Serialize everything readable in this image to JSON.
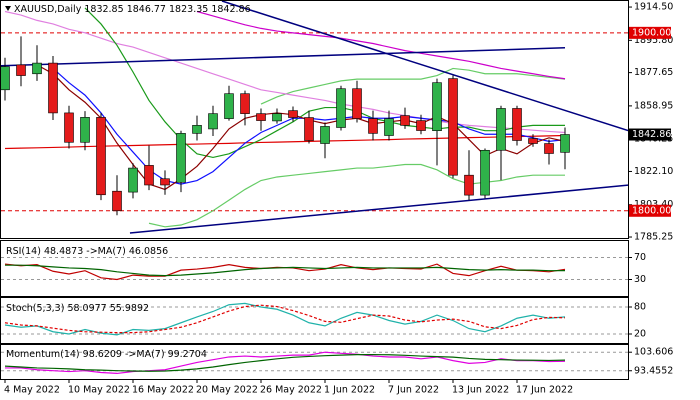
{
  "chart_data": [
    {
      "type": "candlestick",
      "title": "XAUUSD,Daily",
      "categories": [
        "4 May 2022",
        null,
        null,
        null,
        "10 May 2022",
        null,
        null,
        null,
        "16 May 2022",
        null,
        null,
        null,
        "20 May 2022",
        null,
        null,
        null,
        "26 May 2022",
        null,
        null,
        null,
        "1 Jun 2022",
        null,
        null,
        null,
        "7 Jun 2022",
        null,
        null,
        null,
        "13 Jun 2022",
        null,
        null,
        null,
        "17 Jun 2022",
        null,
        null,
        null
      ],
      "open": [
        1868,
        1882,
        1877,
        1883,
        1855,
        1838.5,
        1852.5,
        1811,
        1810.5,
        1825.5,
        1818,
        1816,
        1843.5,
        1846,
        1851.8,
        1865.8,
        1854.6,
        1850.5,
        1856.3,
        1852.4,
        1837.8,
        1846.8,
        1868.6,
        1851.8,
        1842.3,
        1853.5,
        1850.7,
        1845,
        1874.3,
        1820,
        1808.8,
        1834,
        1857.5,
        1840.6,
        1837.8,
        1832.85
      ],
      "high": [
        1886,
        1898,
        1893,
        1887,
        1859,
        1856,
        1855,
        1820,
        1826.7,
        1836.7,
        1822.7,
        1845,
        1853.5,
        1859,
        1870.3,
        1867.5,
        1857.5,
        1857.5,
        1858.6,
        1856.3,
        1849.6,
        1870.3,
        1873.1,
        1856.3,
        1856.3,
        1858,
        1854,
        1874.3,
        1876,
        1834,
        1835,
        1859,
        1859,
        1843,
        1840,
        1846.77
      ],
      "low": [
        1862,
        1870,
        1873,
        1851,
        1835,
        1834,
        1806,
        1797.5,
        1807,
        1811.6,
        1809,
        1810.5,
        1839.5,
        1842,
        1850.7,
        1848,
        1845,
        1849,
        1850.2,
        1837.8,
        1829.5,
        1845.1,
        1849.6,
        1839.5,
        1839.5,
        1846,
        1843,
        1825.5,
        1818.3,
        1806,
        1807,
        1817.2,
        1836.7,
        1836,
        1826,
        1823.35
      ],
      "close": [
        1881,
        1876,
        1883,
        1855,
        1838.5,
        1852.5,
        1809,
        1800,
        1824,
        1814.5,
        1814.5,
        1843.5,
        1848,
        1854.6,
        1865.8,
        1854.6,
        1850.7,
        1854.6,
        1852.4,
        1839.5,
        1847.4,
        1868.6,
        1851.8,
        1843.5,
        1851.8,
        1848,
        1845.1,
        1872,
        1820,
        1808.8,
        1834,
        1857.5,
        1839.5,
        1837.8,
        1832.2,
        1842.86
      ],
      "up_color": "#2fb24a",
      "down_color": "#e41b1b",
      "wick_color": "#000000",
      "ylim": [
        1784.7,
        1917.9
      ],
      "yticks": [
        {
          "value": 1914.5,
          "label": "1914.50"
        },
        {
          "value": 1895.8,
          "label": "1895.80"
        },
        1877.65,
        1858.95,
        1840.25,
        {
          "value": 1822.1,
          "label": "1822.10"
        },
        {
          "value": 1803.4,
          "label": "1803.40"
        },
        1785.25
      ],
      "levels": [
        {
          "value": 1900,
          "label": "1900.00",
          "color": "#e00000"
        },
        {
          "value": 1800,
          "label": "1800.00",
          "color": "#e00000"
        }
      ],
      "last_price_color": "#000000",
      "series": [
        {
          "color": "#66cc66",
          "values": [
            null,
            null,
            null,
            null,
            null,
            null,
            null,
            null,
            null,
            null,
            null,
            null,
            null,
            null,
            null,
            null,
            1860,
            1864,
            1867,
            1869,
            1871,
            1873,
            1874,
            1874,
            1874,
            1874,
            1874,
            1876,
            1880,
            1879,
            1877,
            1877,
            1877,
            1876,
            1875,
            1874
          ]
        },
        {
          "color": "#66cc66",
          "values": [
            null,
            null,
            null,
            null,
            null,
            null,
            null,
            null,
            null,
            1793,
            1791,
            1792,
            1795,
            1800,
            1806,
            1812,
            1817,
            1819,
            1820,
            1821,
            1822,
            1823,
            1824,
            1824,
            1825,
            1826,
            1826,
            1823,
            1818,
            1815,
            1816,
            1817,
            1819,
            1820,
            1820,
            1820
          ]
        },
        {
          "color": "#e080e0",
          "values": [
            1912,
            1910,
            1907,
            1905,
            1902,
            1900,
            1897,
            1894,
            1892,
            1889,
            1886,
            1883,
            1880,
            1877,
            1874,
            1871,
            1868,
            1866.5,
            1865,
            1863.5,
            1862,
            1860,
            1858.5,
            1857,
            1855,
            1853.5,
            1852,
            1850.5,
            1849,
            1848,
            1847.3,
            1846.6,
            1846,
            1845.3,
            1844.6,
            1844
          ]
        },
        {
          "color": "#cc00cc",
          "values": [
            null,
            null,
            null,
            null,
            null,
            null,
            null,
            null,
            null,
            null,
            null,
            null,
            1912,
            1909.5,
            1907,
            1904.5,
            1902.5,
            1901,
            1900,
            1899,
            1898,
            1897,
            1895.5,
            1894,
            1892,
            1890,
            1888.5,
            1887,
            1885.5,
            1884,
            1882,
            1880,
            1878.5,
            1877,
            1875.5,
            1874.2
          ]
        },
        {
          "color": "#e00000",
          "values": [
            1835,
            1835.2,
            1835.4,
            1835.6,
            1835.8,
            1836.1,
            1836.3,
            1836.5,
            1836.7,
            1836.9,
            1837.1,
            1837.3,
            1837.5,
            1837.7,
            1837.9,
            1838.2,
            1838.4,
            1838.6,
            1838.8,
            1839,
            1839.2,
            1839.4,
            1839.6,
            1839.8,
            1840,
            1840.3,
            1840.5,
            1840.7,
            1840.9,
            1841.1,
            1841.3,
            1841.5,
            1841.7,
            1841.9,
            1842.1,
            1842.3
          ]
        },
        {
          "color": "#1a9a1a",
          "values": [
            null,
            null,
            null,
            null,
            null,
            1914,
            1905,
            1893,
            1878,
            1862,
            1850,
            1840,
            1832,
            1830,
            1832,
            1836,
            1840,
            1845,
            1850,
            1856,
            1858,
            1858,
            1856,
            1852,
            1850,
            1848,
            1847,
            1846,
            1847,
            1847,
            1845,
            1845,
            1847,
            1848,
            1848,
            1848
          ]
        },
        {
          "color": "#1010ff",
          "values": [
            null,
            null,
            null,
            1880,
            1872,
            1865,
            1855,
            1843,
            1833,
            1823,
            1817,
            1815,
            1817,
            1822,
            1830,
            1838,
            1844,
            1848,
            1852,
            1852,
            1851,
            1852,
            1853,
            1852,
            1852,
            1853,
            1852,
            1851,
            1850,
            1846,
            1843,
            1843,
            1843,
            1841,
            1839,
            1840
          ]
        },
        {
          "color": "#8b0000",
          "values": [
            null,
            null,
            1882,
            1877,
            1868,
            1861,
            1852,
            1838,
            1826,
            1815,
            1812,
            1818,
            1825,
            1835,
            1846,
            1852,
            1854,
            1855,
            1854,
            1851,
            1849,
            1851,
            1852,
            1849,
            1850,
            1851,
            1849,
            1853,
            1849,
            1840,
            1831,
            1835,
            1832,
            1838,
            1841,
            1839
          ]
        }
      ],
      "trendlines": [
        {
          "color": "#00007f",
          "x": [
            13.56,
            38.94
          ],
          "y": [
            1917.9,
            1845.1
          ]
        },
        {
          "color": "#00007f",
          "x": [
            7.81,
            38.94
          ],
          "y": [
            1787.5,
            1814.4
          ]
        },
        {
          "color": "#00007f",
          "x": [
            -0.31,
            35
          ],
          "y": [
            1881.5,
            1891.6
          ]
        }
      ]
    },
    {
      "type": "line",
      "ylim": [
        0,
        100
      ],
      "yticks": [
        70,
        30
      ],
      "series": [
        {
          "name": "RSI(14)",
          "color": "#c00000",
          "values": [
            58,
            55,
            57,
            45,
            40,
            46,
            33,
            30,
            38,
            36,
            36,
            47,
            49,
            52,
            57,
            52,
            50,
            52,
            51,
            46,
            49,
            57,
            51,
            48,
            51,
            50,
            49,
            58,
            41,
            37,
            46,
            54,
            47,
            46,
            44,
            48.4873
          ]
        },
        {
          "name": "->MA(7)",
          "color": "#006400",
          "values": [
            56,
            56,
            55,
            53,
            51,
            50,
            48,
            44,
            41,
            38,
            37,
            38,
            40,
            42,
            45,
            48,
            50,
            51,
            52,
            51,
            50,
            51,
            52,
            51,
            51,
            51,
            51,
            52,
            50,
            48,
            47,
            48,
            47,
            47,
            46,
            46.0856
          ]
        }
      ]
    },
    {
      "type": "line",
      "ylim": [
        0,
        100
      ],
      "yticks": [
        80,
        20
      ],
      "series": [
        {
          "name": "Stoch(5,3,3)",
          "color": "#20b2aa",
          "values": [
            40,
            35,
            38,
            25,
            20,
            30,
            22,
            18,
            30,
            28,
            32,
            45,
            58,
            70,
            85,
            88,
            80,
            75,
            62,
            45,
            38,
            55,
            68,
            62,
            50,
            42,
            48,
            62,
            50,
            32,
            25,
            38,
            55,
            62,
            55,
            58.0977
          ]
        },
        {
          "color": "#e00000",
          "dashed": true,
          "values": [
            45,
            40,
            38,
            33,
            28,
            25,
            24,
            23,
            23,
            25,
            30,
            35,
            45,
            58,
            71,
            81,
            84,
            81,
            72,
            61,
            48,
            46,
            54,
            62,
            60,
            51,
            47,
            51,
            53,
            48,
            36,
            32,
            39,
            52,
            57,
            55.9892
          ]
        }
      ]
    },
    {
      "type": "line",
      "ylim": [
        88.94,
        107.55
      ],
      "yticks": [
        103.606,
        93.4552
      ],
      "series": [
        {
          "name": "Momentum(14)",
          "color": "#e000e0",
          "values": [
            95,
            95,
            94,
            93.5,
            93,
            93.5,
            92.5,
            92,
            93,
            93.5,
            94,
            96,
            98,
            99.5,
            101,
            101.5,
            101,
            101.5,
            102,
            102,
            103.6,
            103,
            102.5,
            101.5,
            101,
            101,
            100,
            101,
            99,
            97.5,
            98,
            100,
            99,
            99,
            98.5,
            98.6209
          ]
        },
        {
          "name": "->MA(7)",
          "color": "#006400",
          "values": [
            96,
            95.5,
            95,
            94.8,
            94.5,
            94,
            93.8,
            93.5,
            93.3,
            93.2,
            93.3,
            93.8,
            94.5,
            95.5,
            96.8,
            98,
            99,
            100,
            100.8,
            101.3,
            101.7,
            102,
            102.3,
            102.3,
            102.2,
            101.9,
            101.5,
            101.2,
            100.9,
            100.2,
            99.7,
            99.5,
            99.3,
            99.2,
            99.1,
            99.2704
          ]
        }
      ]
    }
  ]
}
